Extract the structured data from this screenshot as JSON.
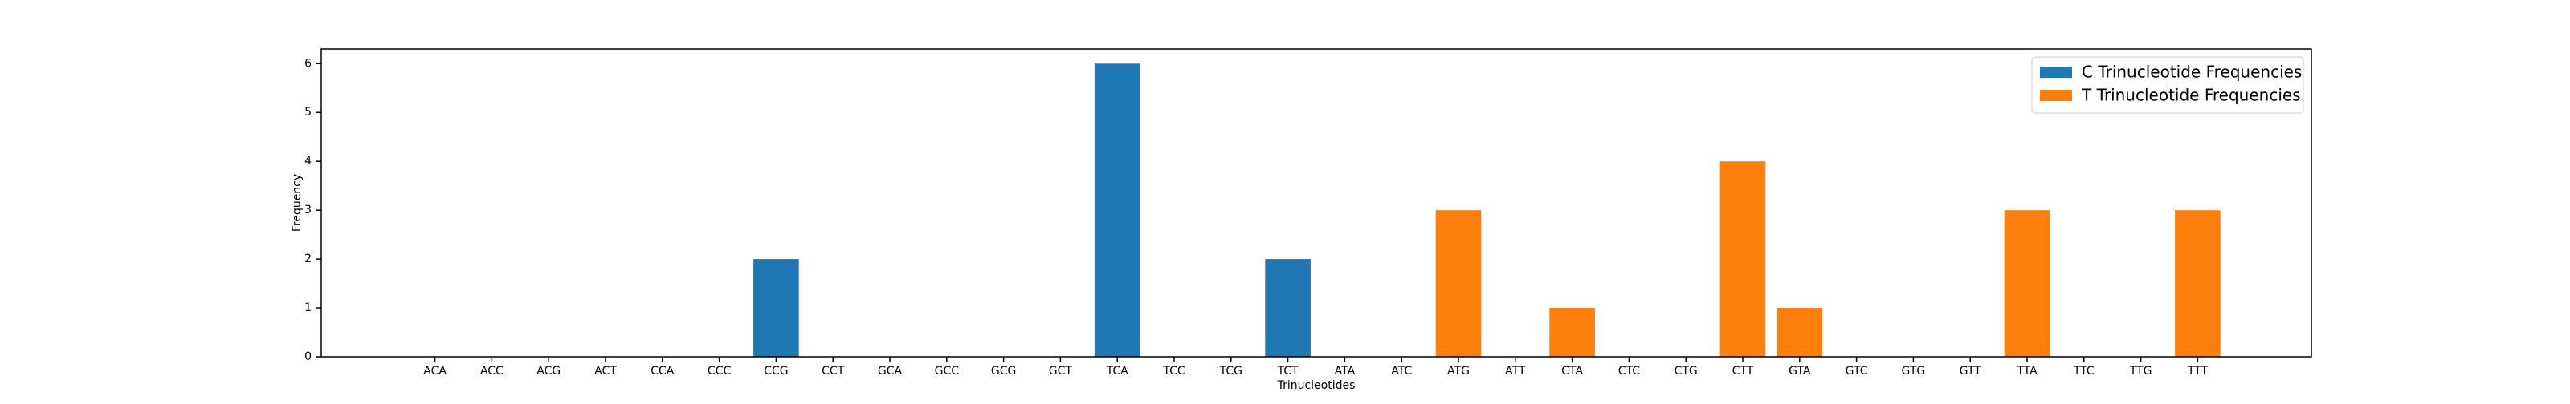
{
  "chart_data": {
    "type": "bar",
    "x_label": "Trinucleotides",
    "y_label": "Frequency",
    "categories": [
      "ACA",
      "ACC",
      "ACG",
      "ACT",
      "CCA",
      "CCC",
      "CCG",
      "CCT",
      "GCA",
      "GCC",
      "GCG",
      "GCT",
      "TCA",
      "TCC",
      "TCG",
      "TCT",
      "ATA",
      "ATC",
      "ATG",
      "ATT",
      "CTA",
      "CTC",
      "CTG",
      "CTT",
      "GTA",
      "GTC",
      "GTG",
      "GTT",
      "TTA",
      "TTC",
      "TTG",
      "TTT"
    ],
    "series": [
      {
        "name": "C Trinucleotide Frequencies",
        "color": "#1f77b4",
        "values": [
          0,
          0,
          0,
          0,
          0,
          0,
          2,
          0,
          0,
          0,
          0,
          0,
          6,
          0,
          0,
          2,
          null,
          null,
          null,
          null,
          null,
          null,
          null,
          null,
          null,
          null,
          null,
          null,
          null,
          null,
          null,
          null
        ]
      },
      {
        "name": "T Trinucleotide Frequencies",
        "color": "#ff7f0e",
        "values": [
          null,
          null,
          null,
          null,
          null,
          null,
          null,
          null,
          null,
          null,
          null,
          null,
          null,
          null,
          null,
          null,
          0,
          0,
          3,
          0,
          1,
          0,
          0,
          4,
          1,
          0,
          0,
          0,
          3,
          0,
          0,
          3
        ]
      }
    ],
    "ylim": [
      0,
      6.3
    ],
    "yticks": [
      0,
      1,
      2,
      3,
      4,
      5,
      6
    ],
    "legend": "upper right"
  }
}
